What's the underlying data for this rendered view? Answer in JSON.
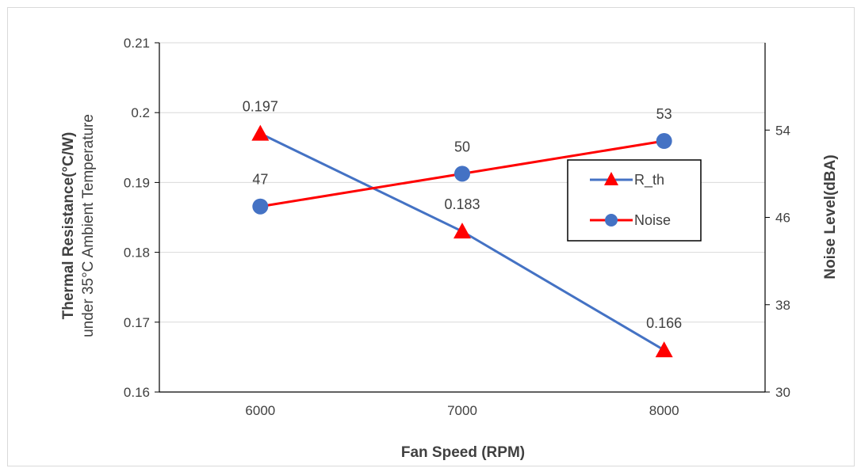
{
  "chart_data": {
    "type": "line",
    "x": [
      6000,
      7000,
      8000
    ],
    "x_ticks": [
      "6000",
      "7000",
      "8000"
    ],
    "xlabel": "Fan Speed (RPM)",
    "ylabel_left": "Thermal Resistance(°C/W)",
    "ylabel_left_sub": "under 35°C Ambient Temperature",
    "ylabel_right": "Noise Level(dBA)",
    "ylim_left": [
      0.16,
      0.21
    ],
    "ylim_right": [
      30,
      62
    ],
    "left_ticks": [
      "0.16",
      "0.17",
      "0.18",
      "0.19",
      "0.2",
      "0.21"
    ],
    "right_ticks": [
      "30",
      "38",
      "46",
      "54"
    ],
    "grid": true,
    "legend_position": "right",
    "series": [
      {
        "name": "R_th",
        "axis": "left",
        "values": [
          0.197,
          0.183,
          0.166
        ],
        "labels": [
          "0.197",
          "0.183",
          "0.166"
        ],
        "line_color": "#4472c4",
        "marker": "triangle",
        "marker_color": "#ff0000"
      },
      {
        "name": "Noise",
        "axis": "right",
        "values": [
          47,
          50,
          53
        ],
        "labels": [
          "47",
          "50",
          "53"
        ],
        "line_color": "#ff0000",
        "marker": "circle",
        "marker_color": "#4472c4"
      }
    ]
  }
}
